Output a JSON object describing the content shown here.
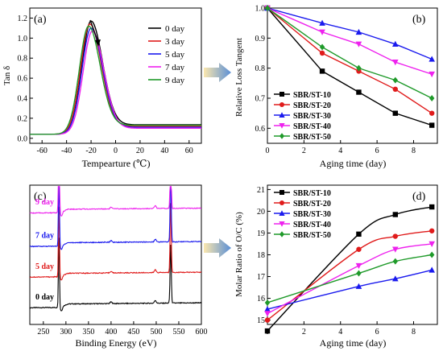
{
  "colors": {
    "black": "#000000",
    "red": "#e01b1b",
    "blue": "#1a1aee",
    "magenta": "#ee22ee",
    "green": "#1f9a2a",
    "arrow_from": "#fbe7ae",
    "arrow_to": "#5a8fd6"
  },
  "chart_data": [
    {
      "panel_label": "(a)",
      "type": "line",
      "xlabel": "Tempearture (℃)",
      "ylabel": "Tan δ",
      "xlim": [
        -70,
        70
      ],
      "ylim": [
        -0.05,
        1.3
      ],
      "xticks": [
        "-60",
        "-40",
        "-20",
        "0",
        "20",
        "40",
        "60"
      ],
      "yticks": [
        "0.0",
        "0.2",
        "0.4",
        "0.6",
        "0.8",
        "1.0",
        "1.2"
      ],
      "legend": "top-right",
      "annotation": "arrow pointing down from highest to lowest peak",
      "series": [
        {
          "name": "0 day",
          "color": "#000000",
          "peak_x": -20,
          "peak_y": 1.17,
          "width": 7.5,
          "base_left": 0.04,
          "base_right": 0.135
        },
        {
          "name": "3 day",
          "color": "#e01b1b",
          "peak_x": -21,
          "peak_y": 1.14,
          "width": 7.5,
          "base_left": 0.04,
          "base_right": 0.12
        },
        {
          "name": "5 day",
          "color": "#1a1aee",
          "peak_x": -20,
          "peak_y": 1.1,
          "width": 7.5,
          "base_left": 0.04,
          "base_right": 0.11
        },
        {
          "name": "7 day",
          "color": "#ee22ee",
          "peak_x": -19,
          "peak_y": 1.07,
          "width": 7.5,
          "base_left": 0.04,
          "base_right": 0.1
        },
        {
          "name": "9 day",
          "color": "#1f9a2a",
          "peak_x": -22,
          "peak_y": 1.12,
          "width": 7.5,
          "base_left": 0.04,
          "base_right": 0.13
        }
      ]
    },
    {
      "panel_label": "(b)",
      "type": "line",
      "xlabel": "Aging time (day)",
      "ylabel": "Relative Loss Tangent",
      "xlim": [
        0,
        9.3
      ],
      "ylim": [
        0.55,
        1.0
      ],
      "xticks": [
        "0",
        "2",
        "4",
        "6",
        "8"
      ],
      "yticks": [
        "0.6",
        "0.7",
        "0.8",
        "0.9",
        "1.0"
      ],
      "legend": "bottom-left",
      "x": [
        0,
        3,
        5,
        7,
        9
      ],
      "series": [
        {
          "name": "SBR/ST-10",
          "color": "#000000",
          "marker": "square",
          "values": [
            1.0,
            0.79,
            0.72,
            0.65,
            0.61
          ]
        },
        {
          "name": "SBR/ST-20",
          "color": "#e01b1b",
          "marker": "circle",
          "values": [
            1.0,
            0.85,
            0.79,
            0.73,
            0.65
          ]
        },
        {
          "name": "SBR/ST-30",
          "color": "#1a1aee",
          "marker": "triangle-up",
          "values": [
            1.0,
            0.95,
            0.92,
            0.88,
            0.83
          ]
        },
        {
          "name": "SBR/ST-40",
          "color": "#ee22ee",
          "marker": "triangle-down",
          "values": [
            1.0,
            0.92,
            0.88,
            0.82,
            0.78
          ]
        },
        {
          "name": "SBR/ST-50",
          "color": "#1f9a2a",
          "marker": "diamond",
          "values": [
            1.0,
            0.87,
            0.8,
            0.76,
            0.7
          ]
        }
      ]
    },
    {
      "panel_label": "(c)",
      "type": "line",
      "xlabel": "Binding Energy (eV)",
      "ylabel": "",
      "xlim": [
        220,
        600
      ],
      "xticks": [
        "250",
        "300",
        "350",
        "400",
        "450",
        "500",
        "550",
        "600"
      ],
      "legend": "none",
      "series": [
        {
          "name": "0 day",
          "color": "#000000",
          "base": 0.12,
          "c_peak": 0.55,
          "o_peak": 0.42
        },
        {
          "name": "5 day",
          "color": "#e01b1b",
          "base": 0.34,
          "c_peak": 0.55,
          "o_peak": 0.5
        },
        {
          "name": "7 day",
          "color": "#1a1aee",
          "base": 0.56,
          "c_peak": 0.55,
          "o_peak": 0.48
        },
        {
          "name": "9 day",
          "color": "#ee22ee",
          "base": 0.8,
          "c_peak": 0.75,
          "o_peak": 0.4
        }
      ]
    },
    {
      "panel_label": "(d)",
      "type": "line",
      "xlabel": "Aging time (day)",
      "ylabel": "Molar Ratio of O/C (%)",
      "xlim": [
        0,
        9.3
      ],
      "ylim": [
        14.8,
        21.2
      ],
      "xticks": [
        "0",
        "2",
        "4",
        "6",
        "8"
      ],
      "yticks": [
        "15",
        "16",
        "17",
        "18",
        "19",
        "20",
        "21"
      ],
      "legend": "top-left",
      "x": [
        0,
        5,
        7,
        9
      ],
      "series": [
        {
          "name": "SBR/ST-10",
          "color": "#000000",
          "marker": "square",
          "values": [
            14.5,
            18.95,
            19.85,
            20.2
          ]
        },
        {
          "name": "SBR/ST-20",
          "color": "#e01b1b",
          "marker": "circle",
          "values": [
            15.0,
            18.25,
            18.85,
            19.1
          ]
        },
        {
          "name": "SBR/ST-30",
          "color": "#1a1aee",
          "marker": "triangle-up",
          "values": [
            15.5,
            16.55,
            16.9,
            17.3
          ]
        },
        {
          "name": "SBR/ST-40",
          "color": "#ee22ee",
          "marker": "triangle-down",
          "values": [
            15.3,
            17.5,
            18.25,
            18.5
          ]
        },
        {
          "name": "SBR/ST-50",
          "color": "#1f9a2a",
          "marker": "diamond",
          "values": [
            15.8,
            17.15,
            17.7,
            18.0
          ]
        }
      ]
    }
  ]
}
